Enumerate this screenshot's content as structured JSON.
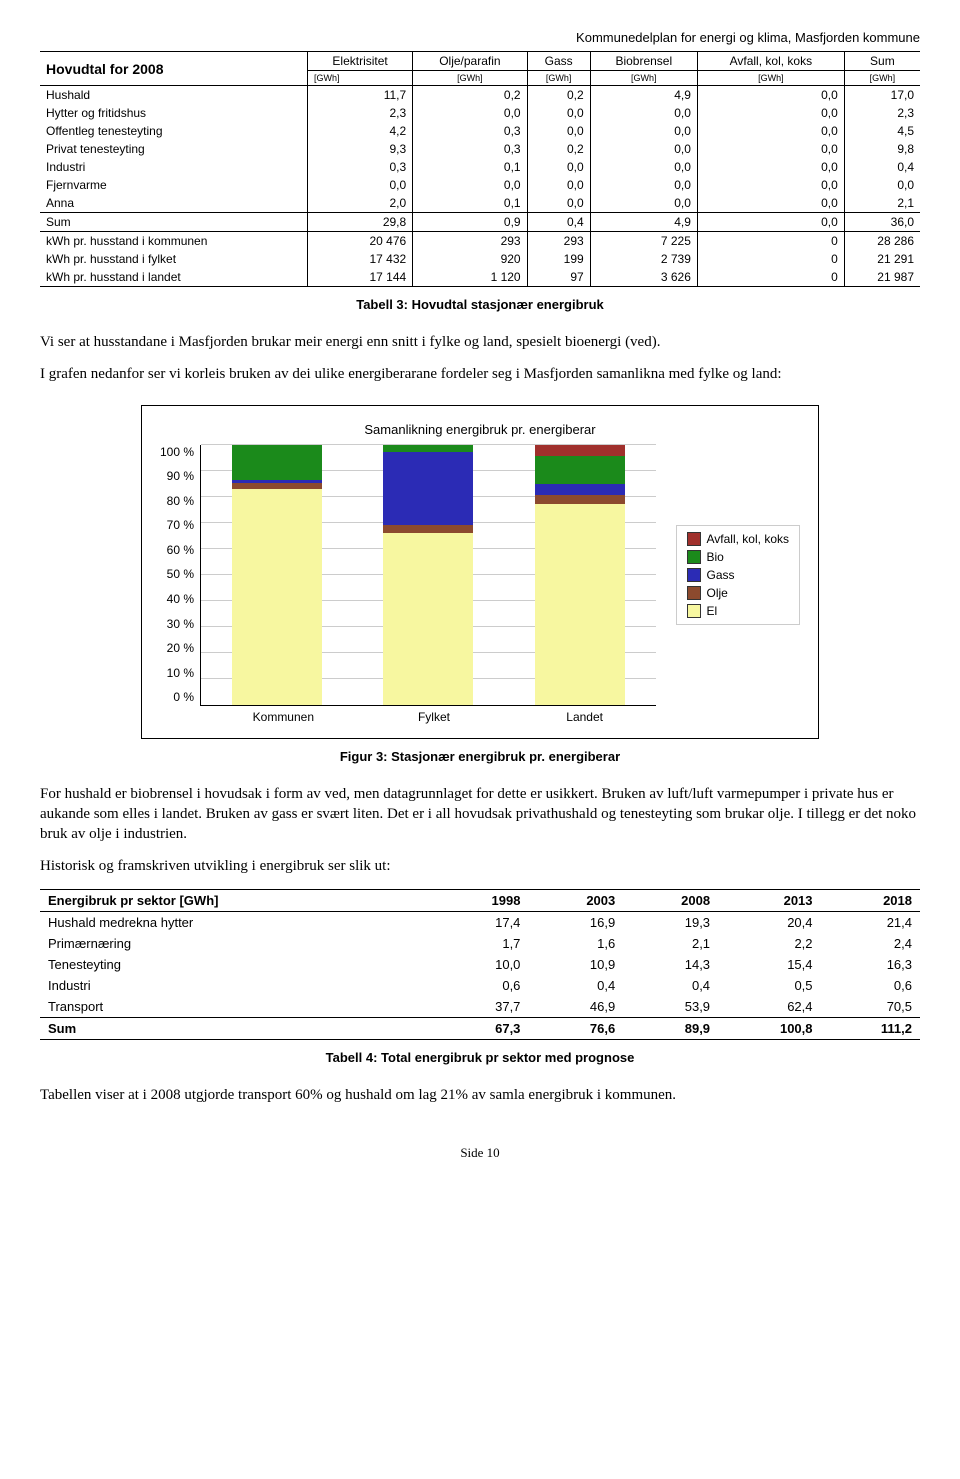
{
  "doc_header": "Kommunedelplan for energi og klima, Masfjorden kommune",
  "table1": {
    "title_cell": "Hovudtal for 2008",
    "col_headers": [
      "Elektrisitet",
      "Olje/parafin",
      "Gass",
      "Biobrensel",
      "Avfall, kol, koks",
      "Sum"
    ],
    "unit": "[GWh]",
    "rows": [
      {
        "label": "Hushald",
        "v": [
          "11,7",
          "0,2",
          "0,2",
          "4,9",
          "0,0",
          "17,0"
        ]
      },
      {
        "label": "Hytter og fritidshus",
        "v": [
          "2,3",
          "0,0",
          "0,0",
          "0,0",
          "0,0",
          "2,3"
        ]
      },
      {
        "label": "Offentleg tenesteyting",
        "v": [
          "4,2",
          "0,3",
          "0,0",
          "0,0",
          "0,0",
          "4,5"
        ]
      },
      {
        "label": "Privat tenesteyting",
        "v": [
          "9,3",
          "0,3",
          "0,2",
          "0,0",
          "0,0",
          "9,8"
        ]
      },
      {
        "label": "Industri",
        "v": [
          "0,3",
          "0,1",
          "0,0",
          "0,0",
          "0,0",
          "0,4"
        ]
      },
      {
        "label": "Fjernvarme",
        "v": [
          "0,0",
          "0,0",
          "0,0",
          "0,0",
          "0,0",
          "0,0"
        ]
      },
      {
        "label": "Anna",
        "v": [
          "2,0",
          "0,1",
          "0,0",
          "0,0",
          "0,0",
          "2,1"
        ]
      },
      {
        "label": "Sum",
        "v": [
          "29,8",
          "0,9",
          "0,4",
          "4,9",
          "0,0",
          "36,0"
        ]
      },
      {
        "label": "kWh pr. husstand i kommunen",
        "v": [
          "20 476",
          "293",
          "293",
          "7 225",
          "0",
          "28 286"
        ]
      },
      {
        "label": "kWh pr. husstand i fylket",
        "v": [
          "17 432",
          "920",
          "199",
          "2 739",
          "0",
          "21 291"
        ]
      },
      {
        "label": "kWh pr. husstand i landet",
        "v": [
          "17 144",
          "1 120",
          "97",
          "3 626",
          "0",
          "21 987"
        ]
      }
    ],
    "caption": "Tabell 3: Hovudtal stasjonær energibruk"
  },
  "para1": "Vi ser at husstandane i Masfjorden brukar meir energi enn snitt i fylke og land, spesielt bioenergi (ved).",
  "para2": "I grafen nedanfor ser vi korleis bruken av dei ulike energiberarane fordeler seg i Masfjorden samanlikna med fylke og land:",
  "chart": {
    "title": "Samanlikning energibruk pr. energiberar",
    "y_ticks": [
      "100 %",
      "90 %",
      "80 %",
      "70 %",
      "60 %",
      "50 %",
      "40 %",
      "30 %",
      "20 %",
      "10 %",
      "0 %"
    ],
    "categories": [
      "Kommunen",
      "Fylket",
      "Landet"
    ],
    "legend": [
      {
        "name": "Avfall, kol, koks",
        "color": "#a0302c"
      },
      {
        "name": "Bio",
        "color": "#1b8a1b"
      },
      {
        "name": "Gass",
        "color": "#2b2bb5"
      },
      {
        "name": "Olje",
        "color": "#8c4a2e"
      },
      {
        "name": "El",
        "color": "#f7f7a0"
      }
    ],
    "series_pct": {
      "Kommunen": {
        "El": 82.8,
        "Olje": 2.5,
        "Gass": 1.1,
        "Bio": 13.6,
        "Avfall": 0.0
      },
      "Fylket": {
        "El": 66.0,
        "Olje": 3.0,
        "Gass": 28.0,
        "Bio": 3.0,
        "Avfall": 0.0
      },
      "Landet": {
        "El": 77.1,
        "Olje": 3.3,
        "Gass": 4.4,
        "Bio": 10.7,
        "Avfall": 4.5
      }
    },
    "caption": "Figur 3: Stasjonær energibruk pr. energiberar"
  },
  "para3": "For hushald er biobrensel i hovudsak i form av ved, men datagrunnlaget for dette er usikkert. Bruken av luft/luft varmepumper i private hus er aukande som elles i landet. Bruken av gass er svært liten. Det er i all hovudsak privathushald og tenesteyting som brukar olje. I tillegg er det noko bruk av olje i industrien.",
  "para4": "Historisk og framskriven utvikling i energibruk ser slik ut:",
  "table2": {
    "header": [
      "Energibruk pr sektor [GWh]",
      "1998",
      "2003",
      "2008",
      "2013",
      "2018"
    ],
    "rows": [
      {
        "label": "Hushald medrekna hytter",
        "v": [
          "17,4",
          "16,9",
          "19,3",
          "20,4",
          "21,4"
        ]
      },
      {
        "label": "Primærnæring",
        "v": [
          "1,7",
          "1,6",
          "2,1",
          "2,2",
          "2,4"
        ]
      },
      {
        "label": "Tenesteyting",
        "v": [
          "10,0",
          "10,9",
          "14,3",
          "15,4",
          "16,3"
        ]
      },
      {
        "label": "Industri",
        "v": [
          "0,6",
          "0,4",
          "0,4",
          "0,5",
          "0,6"
        ]
      },
      {
        "label": "Transport",
        "v": [
          "37,7",
          "46,9",
          "53,9",
          "62,4",
          "70,5"
        ]
      }
    ],
    "sum": {
      "label": "Sum",
      "v": [
        "67,3",
        "76,6",
        "89,9",
        "100,8",
        "111,2"
      ]
    },
    "caption": "Tabell 4: Total energibruk pr sektor med prognose"
  },
  "para5": "Tabellen viser at i 2008 utgjorde transport 60% og hushald om lag 21% av samla energibruk i kommunen.",
  "footer": "Side 10"
}
